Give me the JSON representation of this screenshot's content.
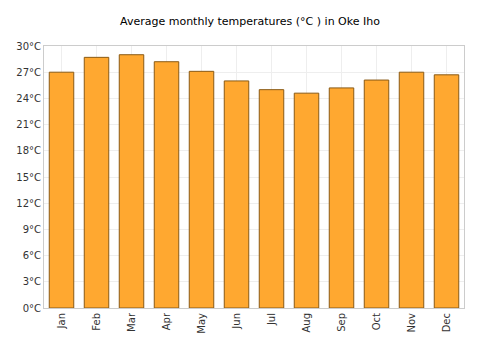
{
  "chart_data": {
    "type": "bar",
    "title": "Average monthly temperatures (°C ) in Oke Iho",
    "categories": [
      "Jan",
      "Feb",
      "Mar",
      "Apr",
      "May",
      "Jun",
      "Jul",
      "Aug",
      "Sep",
      "Oct",
      "Nov",
      "Dec"
    ],
    "values": [
      27.0,
      28.7,
      29.0,
      28.2,
      27.1,
      26.0,
      25.0,
      24.6,
      25.2,
      26.1,
      27.0,
      26.7
    ],
    "color": "#ffa830",
    "ylim": [
      0,
      30
    ],
    "yticks": [
      {
        "value": 0,
        "label": "0°C"
      },
      {
        "value": 3,
        "label": "3°C"
      },
      {
        "value": 6,
        "label": "6°C"
      },
      {
        "value": 9,
        "label": "9°C"
      },
      {
        "value": 12,
        "label": "12°C"
      },
      {
        "value": 15,
        "label": "15°C"
      },
      {
        "value": 18,
        "label": "18°C"
      },
      {
        "value": 21,
        "label": "21°C"
      },
      {
        "value": 24,
        "label": "24°C"
      },
      {
        "value": 27,
        "label": "27°C"
      },
      {
        "value": 30,
        "label": "30°C"
      }
    ],
    "grid": true
  }
}
